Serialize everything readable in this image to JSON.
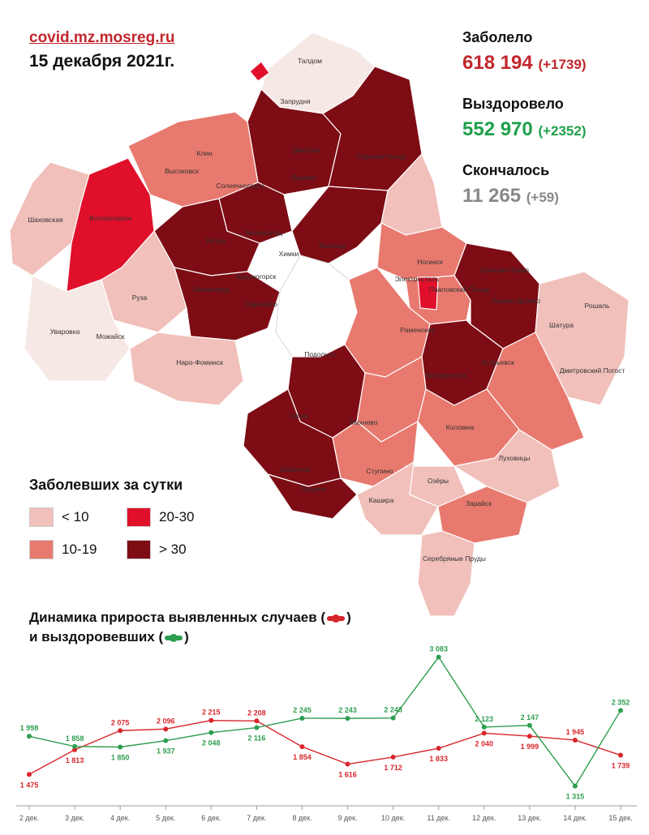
{
  "header": {
    "site": "covid.mz.mosreg.ru",
    "date": "15 декабря 2021г."
  },
  "stats": {
    "infected": {
      "label": "Заболело",
      "value": "618 194",
      "delta": "(+1739)",
      "color": "#c1272d"
    },
    "recovered": {
      "label": "Выздоровело",
      "value": "552 970",
      "delta": "(+2352)",
      "color": "#1fa04b"
    },
    "deceased": {
      "label": "Скончалось",
      "value": "11 265",
      "delta": "(+59)",
      "color": "#888888"
    }
  },
  "map": {
    "legend_title": "Заболевших за сутки",
    "legend": [
      {
        "label": "< 10",
        "color": "#f1c0bb"
      },
      {
        "label": "20-30",
        "color": "#e0102a"
      },
      {
        "label": "10-19",
        "color": "#e8796e"
      },
      {
        "label": "> 30",
        "color": "#7d0c15"
      }
    ],
    "place_labels": [
      "Талдом",
      "Запрудня",
      "Дмитров",
      "Сергиев Посад",
      "Клин",
      "Высоковск",
      "Солнечногорск",
      "Яхрома",
      "Шаховская",
      "Волоколамск",
      "Зеленоград",
      "Истра",
      "Мытищи",
      "Химки",
      "Ногинск",
      "Электросталь",
      "Орехово-Зуево",
      "Красногорск",
      "Павловский Посад",
      "Ликино-Дулёво",
      "Рошаль",
      "Руза",
      "Звенигород",
      "Одинцово",
      "Раменское",
      "Шатура",
      "Уваровка",
      "Можайск",
      "Наро-Фоминск",
      "Подольск",
      "Воскресенск",
      "Егорьевск",
      "Дмитровский Погост",
      "Чехов",
      "Михнево",
      "Коломна",
      "Луховицы",
      "Серпухов",
      "Ступино",
      "Озёры",
      "Пущино",
      "Кашира",
      "Зарайск",
      "Серебряные Пруды"
    ]
  },
  "dynamics": {
    "title_line1": "Динамика прироста выявленных случаев (",
    "title_line1_end": ")",
    "title_line2": "и выздоровевших (",
    "title_line2_end": ")"
  },
  "chart_data": {
    "type": "line",
    "categories": [
      "2 дек.",
      "3 дек.",
      "4 дек.",
      "5 дек.",
      "6 дек.",
      "7 дек.",
      "8 дек.",
      "9 дек.",
      "10 дек.",
      "11 дек.",
      "12 дек.",
      "13 дек.",
      "14 дек.",
      "15 дек."
    ],
    "series": [
      {
        "color": "#d7262c",
        "values": [
          1475,
          1813,
          2075,
          2096,
          2215,
          2208,
          1854,
          1616,
          1712,
          1833,
          2040,
          1999,
          1945,
          1739
        ],
        "labels": [
          "1 475",
          "1 813",
          "2 075",
          "2 096",
          "2 215",
          "2 208",
          "1 854",
          "1 616",
          "1 712",
          "1 833",
          "2 040",
          "1 999",
          "1 945",
          "1 739"
        ]
      },
      {
        "color": "#2e9e4f",
        "values": [
          1998,
          1858,
          1850,
          1937,
          2048,
          2116,
          2245,
          2243,
          2248,
          3083,
          2123,
          2147,
          1315,
          2352
        ],
        "labels": [
          "1 998",
          "1 858",
          "1 850",
          "1 937",
          "2 048",
          "2 116",
          "2 245",
          "2 243",
          "2 248",
          "3 083",
          "2 123",
          "2 147",
          "1 315",
          "2 352"
        ]
      }
    ],
    "ylim": [
      1200,
      3200
    ]
  }
}
